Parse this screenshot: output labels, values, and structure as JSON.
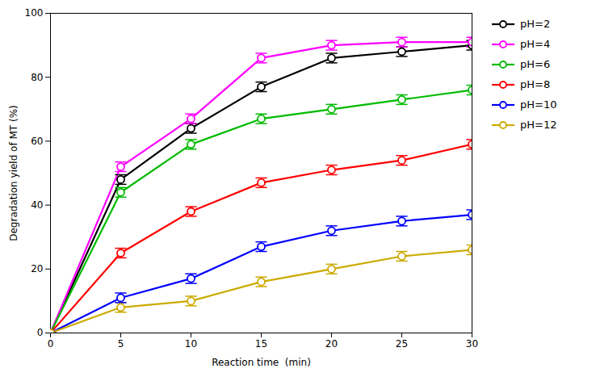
{
  "chart_data": {
    "type": "line",
    "xlabel": "Reaction time  (min)",
    "ylabel": "Degradation yield of MT (%)",
    "x": [
      0,
      5,
      10,
      15,
      20,
      25,
      30
    ],
    "series": [
      {
        "name": "pH=2",
        "color": "#000000",
        "values": [
          0,
          48,
          64,
          77,
          86,
          88,
          90
        ],
        "errors": [
          0,
          1.5,
          1.5,
          1.5,
          1.5,
          1.5,
          1.5
        ]
      },
      {
        "name": "pH=4",
        "color": "#ff00ff",
        "values": [
          0,
          52,
          67,
          86,
          90,
          91,
          91
        ],
        "errors": [
          0,
          1.5,
          1.5,
          1.5,
          1.5,
          1.5,
          1.5
        ]
      },
      {
        "name": "pH=6",
        "color": "#00bb00",
        "values": [
          0,
          44,
          59,
          67,
          70,
          73,
          76
        ],
        "errors": [
          0,
          1.5,
          1.5,
          1.5,
          1.5,
          1.5,
          1.5
        ]
      },
      {
        "name": "pH=8",
        "color": "#ff0000",
        "values": [
          0,
          25,
          38,
          47,
          51,
          54,
          59
        ],
        "errors": [
          0,
          1.5,
          1.5,
          1.5,
          1.5,
          1.5,
          1.5
        ]
      },
      {
        "name": "pH=10",
        "color": "#0000ff",
        "values": [
          0,
          11,
          17,
          27,
          32,
          35,
          37
        ],
        "errors": [
          0,
          1.5,
          1.5,
          1.5,
          1.5,
          1.5,
          1.5
        ]
      },
      {
        "name": "pH=12",
        "color": "#ccaa00",
        "values": [
          0,
          8,
          10,
          16,
          20,
          24,
          26
        ],
        "errors": [
          0,
          1.5,
          1.5,
          1.5,
          1.5,
          1.5,
          1.5
        ]
      }
    ],
    "xlim": [
      0,
      30
    ],
    "ylim": [
      0,
      100
    ],
    "xticks": [
      0,
      5,
      10,
      15,
      20,
      25,
      30
    ],
    "yticks": [
      0,
      20,
      40,
      60,
      80,
      100
    ],
    "grid": false,
    "legend": "right",
    "marker": "circle"
  }
}
